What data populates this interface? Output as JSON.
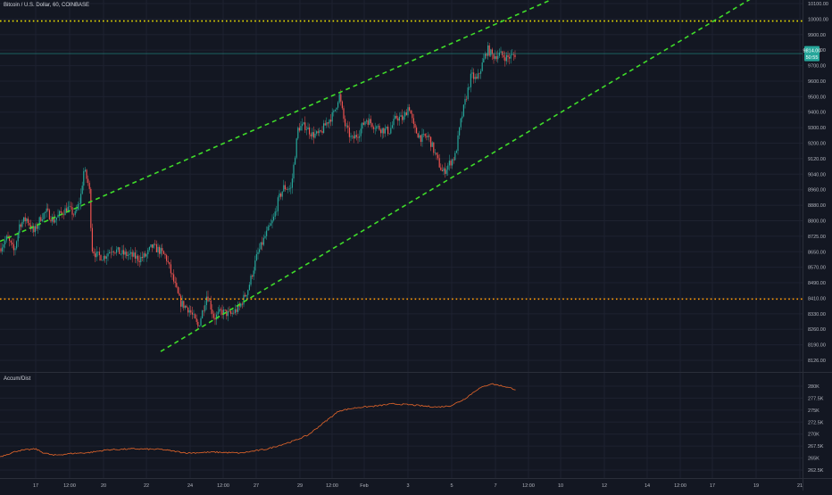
{
  "header": {
    "symbol_title": "Bitcoin / U.S. Dollar, 60, COINBASE"
  },
  "indicator": {
    "label": "Accum/Dist"
  },
  "price_tag": {
    "price": "9814.00",
    "countdown": "50:55"
  },
  "colors": {
    "background": "#131722",
    "grid": "#1e2230",
    "up": "#26a69a",
    "down": "#ef5350",
    "channel": "#3fdc2a",
    "resistance": "#f2e600",
    "support": "#ff9800",
    "ad_line": "#e8672a",
    "price_tag": "#26a69a",
    "axis_text": "#b2b5be"
  },
  "chart_data": [
    {
      "type": "candlestick",
      "title": "Bitcoin / U.S. Dollar, 60, COINBASE",
      "x_ticks": [
        "17",
        "12:00",
        "20",
        "22",
        "24",
        "12:00",
        "27",
        "29",
        "12:00",
        "Feb",
        "3",
        "5",
        "7",
        "12:00",
        "10",
        "12",
        "14",
        "12:00",
        "17",
        "19",
        "21"
      ],
      "y_ticks": [
        10100,
        10000,
        9900,
        9800,
        9700,
        9600,
        9500,
        9400,
        9300,
        9200,
        9120,
        9040,
        8960,
        8880,
        8800,
        8725,
        8650,
        8570,
        8490,
        8410,
        8330,
        8260,
        8190,
        8126
      ],
      "ylim": [
        8080,
        10100
      ],
      "price_path": [
        [
          0,
          8700
        ],
        [
          8,
          8760
        ],
        [
          16,
          8680
        ],
        [
          22,
          8840
        ],
        [
          30,
          8870
        ],
        [
          38,
          8790
        ],
        [
          46,
          8880
        ],
        [
          52,
          8910
        ],
        [
          60,
          8860
        ],
        [
          68,
          8900
        ],
        [
          76,
          8930
        ],
        [
          84,
          8890
        ],
        [
          90,
          8980
        ],
        [
          94,
          9150
        ],
        [
          100,
          9050
        ],
        [
          103,
          8700
        ],
        [
          108,
          8660
        ],
        [
          116,
          8650
        ],
        [
          126,
          8700
        ],
        [
          136,
          8670
        ],
        [
          146,
          8660
        ],
        [
          156,
          8640
        ],
        [
          164,
          8660
        ],
        [
          170,
          8710
        ],
        [
          178,
          8690
        ],
        [
          186,
          8650
        ],
        [
          194,
          8520
        ],
        [
          202,
          8390
        ],
        [
          212,
          8350
        ],
        [
          222,
          8250
        ],
        [
          232,
          8440
        ],
        [
          240,
          8300
        ],
        [
          248,
          8340
        ],
        [
          258,
          8320
        ],
        [
          268,
          8360
        ],
        [
          278,
          8470
        ],
        [
          288,
          8660
        ],
        [
          298,
          8780
        ],
        [
          306,
          8860
        ],
        [
          312,
          8980
        ],
        [
          318,
          9050
        ],
        [
          326,
          9040
        ],
        [
          334,
          9390
        ],
        [
          342,
          9400
        ],
        [
          350,
          9350
        ],
        [
          358,
          9350
        ],
        [
          366,
          9420
        ],
        [
          374,
          9470
        ],
        [
          380,
          9580
        ],
        [
          386,
          9410
        ],
        [
          394,
          9320
        ],
        [
          402,
          9360
        ],
        [
          410,
          9440
        ],
        [
          420,
          9400
        ],
        [
          428,
          9380
        ],
        [
          436,
          9370
        ],
        [
          444,
          9450
        ],
        [
          452,
          9440
        ],
        [
          458,
          9520
        ],
        [
          464,
          9380
        ],
        [
          472,
          9330
        ],
        [
          480,
          9340
        ],
        [
          488,
          9230
        ],
        [
          496,
          9130
        ],
        [
          504,
          9190
        ],
        [
          510,
          9230
        ],
        [
          516,
          9420
        ],
        [
          522,
          9560
        ],
        [
          528,
          9690
        ],
        [
          534,
          9660
        ],
        [
          540,
          9750
        ],
        [
          546,
          9840
        ],
        [
          552,
          9800
        ],
        [
          560,
          9810
        ],
        [
          568,
          9790
        ],
        [
          574,
          9800
        ],
        [
          578,
          9814
        ]
      ],
      "channel_upper": [
        [
          0,
          8740
        ],
        [
          630,
          10150
        ]
      ],
      "channel_lower": [
        [
          180,
          8110
        ],
        [
          842,
          10130
        ]
      ],
      "resistance_level": 10000,
      "support_level": 8410,
      "last_price": 9814,
      "grid": true
    },
    {
      "type": "line",
      "name": "Accum/Dist",
      "y_ticks": [
        "280K",
        "277.5K",
        "275K",
        "272.5K",
        "270K",
        "267.5K",
        "265K",
        "262.5K"
      ],
      "ylim": [
        261600,
        281400
      ],
      "values_path": [
        [
          0,
          264500
        ],
        [
          20,
          265800
        ],
        [
          40,
          266200
        ],
        [
          48,
          265400
        ],
        [
          60,
          264800
        ],
        [
          80,
          265200
        ],
        [
          100,
          265400
        ],
        [
          120,
          266000
        ],
        [
          150,
          266200
        ],
        [
          180,
          266100
        ],
        [
          210,
          265300
        ],
        [
          240,
          265500
        ],
        [
          270,
          265300
        ],
        [
          300,
          266200
        ],
        [
          330,
          268000
        ],
        [
          345,
          269200
        ],
        [
          360,
          271500
        ],
        [
          380,
          274500
        ],
        [
          400,
          275200
        ],
        [
          420,
          275500
        ],
        [
          440,
          276000
        ],
        [
          460,
          275800
        ],
        [
          470,
          275600
        ],
        [
          490,
          275300
        ],
        [
          505,
          275600
        ],
        [
          520,
          277000
        ],
        [
          535,
          279200
        ],
        [
          550,
          280400
        ],
        [
          565,
          279800
        ],
        [
          578,
          279100
        ]
      ],
      "grid": true
    }
  ]
}
